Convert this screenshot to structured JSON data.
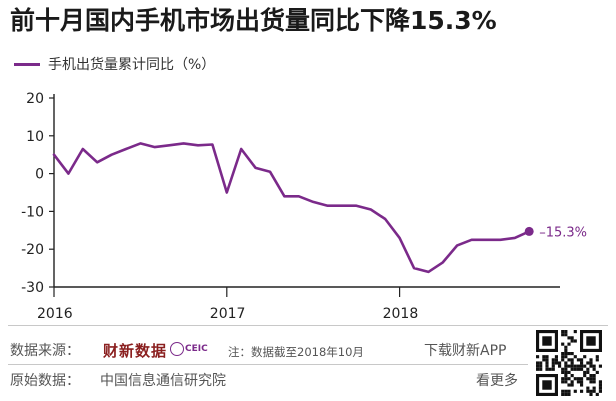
{
  "header": {
    "title": "前十月国内手机市场出货量同比下降15.3%"
  },
  "chart_data": {
    "type": "line",
    "title": "前十月国内手机市场出货量同比下降15.3%",
    "series": [
      {
        "name": "手机出货量累计同比（%）",
        "x": [
          "2016-01",
          "2016-02",
          "2016-03",
          "2016-04",
          "2016-05",
          "2016-06",
          "2016-07",
          "2016-08",
          "2016-09",
          "2016-10",
          "2016-11",
          "2016-12",
          "2017-01",
          "2017-02",
          "2017-03",
          "2017-04",
          "2017-05",
          "2017-06",
          "2017-07",
          "2017-08",
          "2017-09",
          "2017-10",
          "2017-11",
          "2017-12",
          "2018-01",
          "2018-02",
          "2018-03",
          "2018-04",
          "2018-05",
          "2018-06",
          "2018-07",
          "2018-08",
          "2018-09",
          "2018-10"
        ],
        "values": [
          5,
          0,
          6.5,
          3,
          5,
          6.5,
          8,
          7,
          7.5,
          8,
          7.5,
          7.7,
          -5,
          6.5,
          1.5,
          0.5,
          -6,
          -6,
          -7.5,
          -8.5,
          -8.5,
          -8.5,
          -9.5,
          -12,
          -17,
          -25,
          -26,
          -23.5,
          -19,
          -17.5,
          -17.5,
          -17.5,
          -17,
          -15.3
        ]
      }
    ],
    "yticks": [
      20,
      10,
      0,
      -10,
      -20,
      -30
    ],
    "ylim": [
      -30,
      20
    ],
    "xticks": [
      "2016",
      "2017",
      "2018"
    ],
    "end_label": "–15.3%",
    "grid": false,
    "legend": "top-left",
    "colors": {
      "line": "#7b2a8a",
      "axis": "#222222"
    }
  },
  "footer": {
    "source_label": "数据来源：",
    "caixin_logo": "财新数据",
    "ceic_logo": "CEIC",
    "note": "注：数据截至2018年10月",
    "download": "下载财新APP",
    "origin_label": "原始数据：",
    "origin": "中国信息通信研究院",
    "more": "看更多"
  }
}
